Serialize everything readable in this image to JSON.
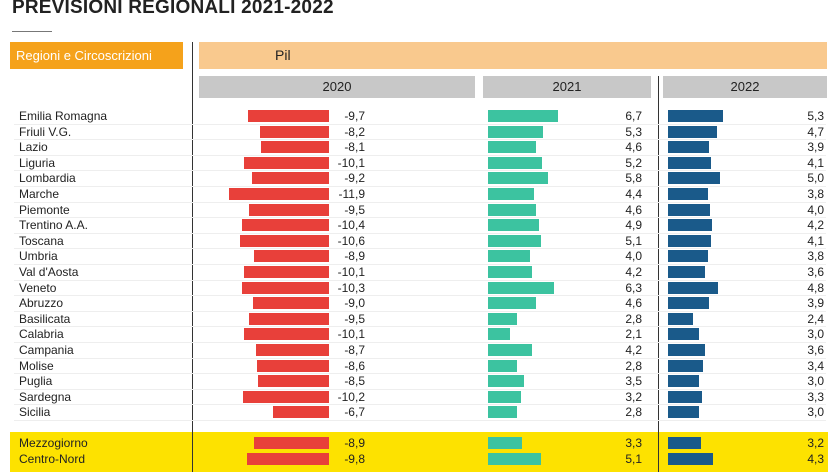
{
  "title": "PREVISIONI REGIONALI 2021-2022",
  "header": {
    "regions_label": "Regioni e Circoscrizioni",
    "indicator_label": "Pil"
  },
  "chart_data": {
    "type": "bar",
    "title": "PREVISIONI REGIONALI 2021-2022",
    "indicator": "Pil",
    "orientation": "horizontal",
    "categories": [
      "Emilia Romagna",
      "Friuli V.G.",
      "Lazio",
      "Liguria",
      "Lombardia",
      "Marche",
      "Piemonte",
      "Trentino A.A.",
      "Toscana",
      "Umbria",
      "Val d'Aosta",
      "Veneto",
      "Abruzzo",
      "Basilicata",
      "Calabria",
      "Campania",
      "Molise",
      "Puglia",
      "Sardegna",
      "Sicilia"
    ],
    "series": [
      {
        "name": "2020",
        "color": "#e8403a",
        "values": [
          -9.7,
          -8.2,
          -8.1,
          -10.1,
          -9.2,
          -11.9,
          -9.5,
          -10.4,
          -10.6,
          -8.9,
          -10.1,
          -10.3,
          -9.0,
          -9.5,
          -10.1,
          -8.7,
          -8.6,
          -8.5,
          -10.2,
          -6.7
        ]
      },
      {
        "name": "2021",
        "color": "#3cc3a0",
        "values": [
          6.7,
          5.3,
          4.6,
          5.2,
          5.8,
          4.4,
          4.6,
          4.9,
          5.1,
          4.0,
          4.2,
          6.3,
          4.6,
          2.8,
          2.1,
          4.2,
          2.8,
          3.5,
          3.2,
          2.8
        ]
      },
      {
        "name": "2022",
        "color": "#1a5a8a",
        "values": [
          5.3,
          4.7,
          3.9,
          4.1,
          5.0,
          3.8,
          4.0,
          4.2,
          4.1,
          3.8,
          3.6,
          4.8,
          3.9,
          2.4,
          3.0,
          3.6,
          3.4,
          3.0,
          3.3,
          3.0
        ]
      }
    ],
    "summary": [
      {
        "name": "Mezzogiorno",
        "values": [
          -8.9,
          3.3,
          3.2
        ]
      },
      {
        "name": "Centro-Nord",
        "values": [
          -9.8,
          5.1,
          4.3
        ]
      }
    ]
  }
}
